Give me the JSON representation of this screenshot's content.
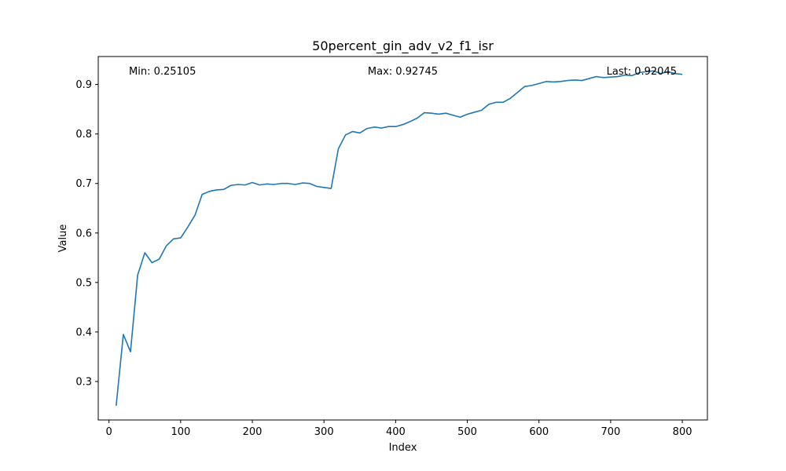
{
  "chart_data": {
    "type": "line",
    "title": "50percent_gin_adv_v2_f1_isr",
    "xlabel": "Index",
    "ylabel": "Value",
    "xlim": [
      -15,
      835
    ],
    "ylim": [
      0.2222,
      0.9565
    ],
    "x_ticks": [
      0,
      100,
      200,
      300,
      400,
      500,
      600,
      700,
      800
    ],
    "y_ticks": [
      0.3,
      0.4,
      0.5,
      0.6,
      0.7,
      0.8,
      0.9
    ],
    "grid": false,
    "annotations": {
      "min": "Min: 0.25105",
      "max": "Max: 0.92745",
      "last": "Last: 0.92045"
    },
    "series": [
      {
        "color": "#1f77b4",
        "x": [
          10,
          20,
          30,
          40,
          50,
          60,
          70,
          80,
          90,
          100,
          110,
          120,
          130,
          140,
          150,
          160,
          170,
          180,
          190,
          200,
          210,
          220,
          230,
          240,
          250,
          260,
          270,
          280,
          290,
          300,
          310,
          320,
          330,
          340,
          350,
          360,
          370,
          380,
          390,
          400,
          410,
          420,
          430,
          440,
          450,
          460,
          470,
          480,
          490,
          500,
          510,
          520,
          530,
          540,
          550,
          560,
          570,
          580,
          590,
          600,
          610,
          620,
          630,
          640,
          650,
          660,
          670,
          680,
          690,
          700,
          710,
          720,
          730,
          740,
          750,
          760,
          770,
          780,
          790,
          800
        ],
        "y": [
          0.25105,
          0.395,
          0.36,
          0.515,
          0.56,
          0.54,
          0.547,
          0.574,
          0.588,
          0.59,
          0.612,
          0.636,
          0.678,
          0.684,
          0.687,
          0.688,
          0.696,
          0.698,
          0.697,
          0.702,
          0.697,
          0.699,
          0.698,
          0.7,
          0.7,
          0.698,
          0.701,
          0.7,
          0.694,
          0.692,
          0.69,
          0.77,
          0.798,
          0.805,
          0.802,
          0.811,
          0.814,
          0.812,
          0.815,
          0.815,
          0.819,
          0.825,
          0.832,
          0.843,
          0.842,
          0.84,
          0.842,
          0.838,
          0.834,
          0.84,
          0.844,
          0.848,
          0.86,
          0.864,
          0.864,
          0.872,
          0.884,
          0.896,
          0.898,
          0.902,
          0.906,
          0.905,
          0.906,
          0.908,
          0.909,
          0.908,
          0.912,
          0.916,
          0.914,
          0.915,
          0.916,
          0.919,
          0.918,
          0.924,
          0.926,
          0.92745,
          0.922,
          0.926,
          0.922,
          0.92045
        ]
      }
    ]
  }
}
